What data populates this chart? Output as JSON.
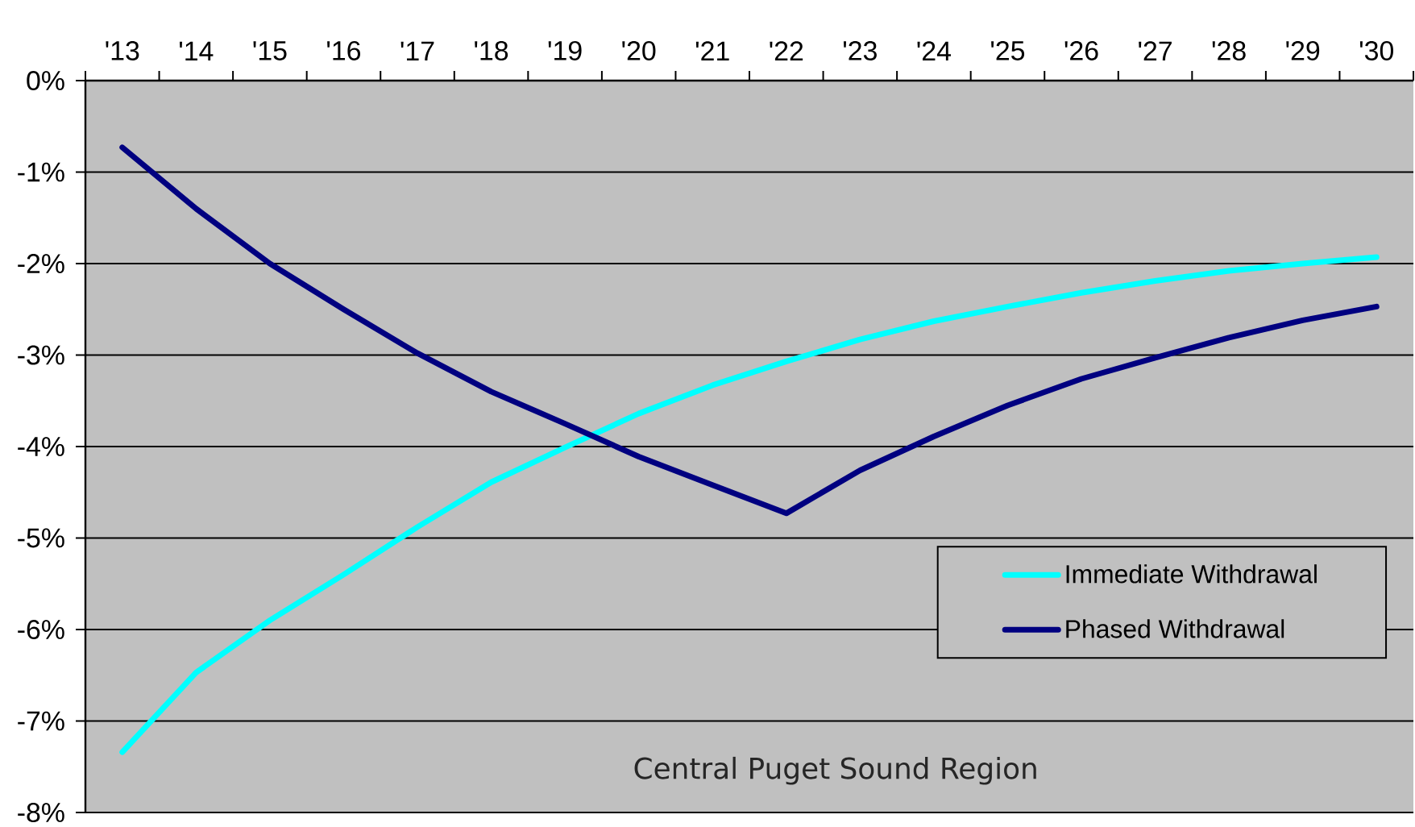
{
  "chart_data": {
    "type": "line",
    "categories": [
      "'13",
      "'14",
      "'15",
      "'16",
      "'17",
      "'18",
      "'19",
      "'20",
      "'21",
      "'22",
      "'23",
      "'24",
      "'25",
      "'26",
      "'27",
      "'28",
      "'29",
      "'30"
    ],
    "series": [
      {
        "name": "Immediate Withdrawal",
        "color": "#00ffff",
        "values": [
          -7.34,
          -6.47,
          -5.9,
          -5.4,
          -4.88,
          -4.39,
          -4.01,
          -3.64,
          -3.33,
          -3.07,
          -2.83,
          -2.63,
          -2.47,
          -2.32,
          -2.19,
          -2.08,
          -2.0,
          -1.93
        ]
      },
      {
        "name": "Phased Withdrawal",
        "color": "#000080",
        "values": [
          -0.73,
          -1.4,
          -2.0,
          -2.5,
          -2.98,
          -3.4,
          -3.75,
          -4.11,
          -4.42,
          -4.73,
          -4.26,
          -3.89,
          -3.55,
          -3.26,
          -3.03,
          -2.81,
          -2.62,
          -2.47
        ]
      }
    ],
    "ylim": [
      -8,
      0
    ],
    "yticks": [
      {
        "value": -8,
        "label": "-8%"
      },
      {
        "value": -7,
        "label": "-7%"
      },
      {
        "value": -6,
        "label": "-6%"
      },
      {
        "value": -5,
        "label": "-5%"
      },
      {
        "value": -4,
        "label": "-4%"
      },
      {
        "value": -3,
        "label": "-3%"
      },
      {
        "value": -2,
        "label": "-2%"
      },
      {
        "value": -1,
        "label": "-1%"
      },
      {
        "value": 0,
        "label": "0%"
      }
    ],
    "grid": "y",
    "legend": "bottom right",
    "marker": "none",
    "line_style": "solid",
    "annotations": [
      "Central Puget Sound Region"
    ]
  }
}
